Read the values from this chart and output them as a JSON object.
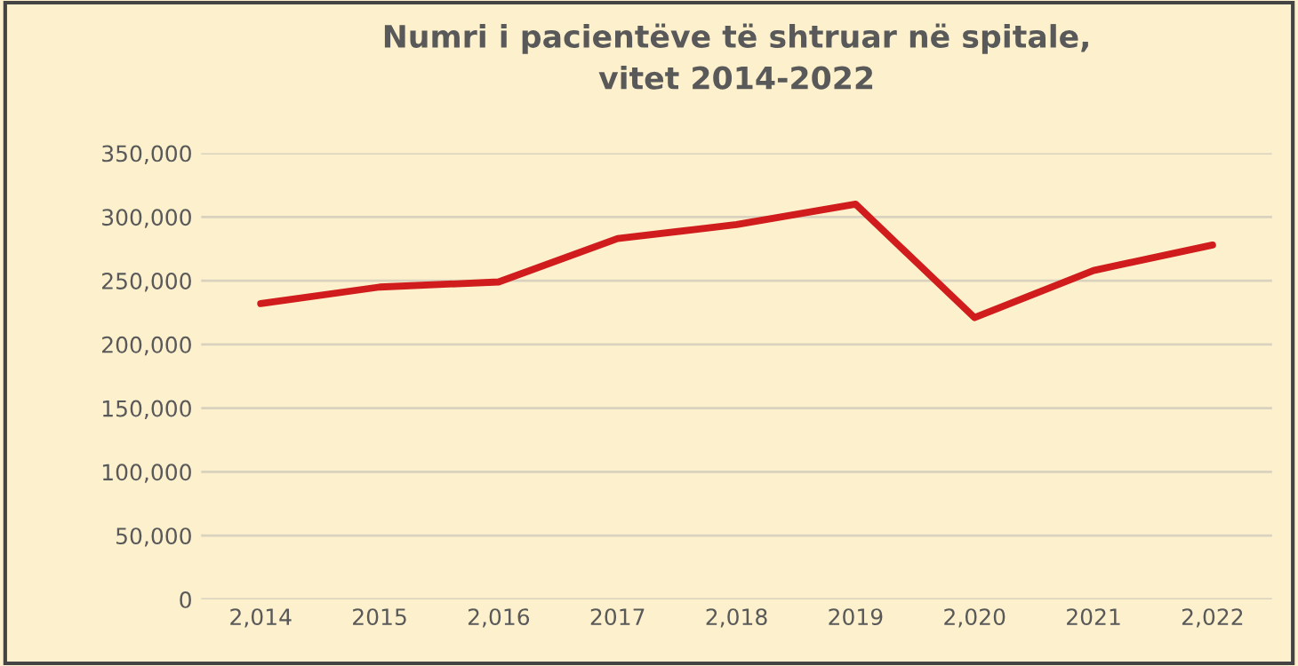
{
  "chart_data": {
    "type": "line",
    "title": "Numri i pacientëve të shtruar në spitale,\nvitet 2014-2022",
    "categories": [
      "2,014",
      "2015",
      "2,016",
      "2017",
      "2,018",
      "2019",
      "2,020",
      "2021",
      "2,022"
    ],
    "series": [
      {
        "color": "#d01c1c",
        "values": [
          232000,
          245000,
          249000,
          283000,
          294000,
          310000,
          221000,
          258000,
          278000
        ]
      }
    ],
    "ylim": [
      0,
      350000
    ],
    "yticks": [
      {
        "value": 0,
        "label": "0"
      },
      {
        "value": 50000,
        "label": "50,000"
      },
      {
        "value": 100000,
        "label": "100,000"
      },
      {
        "value": 150000,
        "label": "150,000"
      },
      {
        "value": 200000,
        "label": "200,000"
      },
      {
        "value": 250000,
        "label": "250,000"
      },
      {
        "value": 300000,
        "label": "300,000"
      },
      {
        "value": 350000,
        "label": "350,000"
      }
    ],
    "grid": "y",
    "legend": false,
    "marker": "none",
    "line_style": "solid"
  }
}
